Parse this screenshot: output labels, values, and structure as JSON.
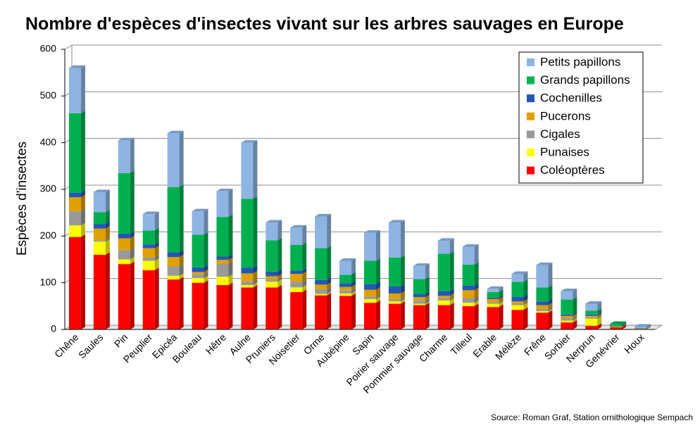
{
  "chart_data": {
    "type": "bar",
    "stacked": true,
    "title": "Nombre d'espèces d'insectes vivant sur les arbres sauvages en Europe",
    "ylabel": "Espèces d'insectes",
    "xlabel": "",
    "ylim": [
      0,
      600
    ],
    "yticks": [
      0,
      100,
      200,
      300,
      400,
      500,
      600
    ],
    "grid": true,
    "legend_position": "top-right",
    "source": "Source: Roman Graf, Station ornithologique Sempach",
    "categories": [
      "Chêne",
      "Saules",
      "Pin",
      "Peuplier",
      "Epicéa",
      "Bouleau",
      "Hêtre",
      "Aulne",
      "Pruniers",
      "Noisetier",
      "Orme",
      "Aubépine",
      "Sapin",
      "Poirier sauvage",
      "Pommier sauvage",
      "Charme",
      "Tilleul",
      "Erable",
      "Mélèze",
      "Frêne",
      "Sorbier",
      "Nerprun",
      "Genévrier",
      "Houx"
    ],
    "series": [
      {
        "name": "Coléoptères",
        "color": "#ff0000",
        "values": [
          198,
          160,
          140,
          127,
          107,
          100,
          95,
          90,
          90,
          80,
          73,
          72,
          57,
          55,
          52,
          52,
          50,
          48,
          42,
          36,
          15,
          8,
          5,
          1
        ]
      },
      {
        "name": "Punaises",
        "color": "#ffff00",
        "values": [
          25,
          28,
          10,
          20,
          8,
          10,
          18,
          5,
          12,
          10,
          3,
          5,
          8,
          5,
          3,
          10,
          7,
          7,
          10,
          3,
          4,
          15,
          1,
          1
        ]
      },
      {
        "name": "Cigales",
        "color": "#999999",
        "values": [
          30,
          3,
          20,
          7,
          20,
          8,
          28,
          8,
          5,
          12,
          10,
          7,
          5,
          5,
          7,
          5,
          10,
          3,
          3,
          5,
          5,
          3,
          0,
          0
        ]
      },
      {
        "name": "Pucerons",
        "color": "#e0a000",
        "values": [
          30,
          25,
          25,
          20,
          20,
          5,
          8,
          17,
          7,
          17,
          10,
          7,
          15,
          12,
          7,
          5,
          17,
          7,
          5,
          8,
          5,
          3,
          0,
          0
        ]
      },
      {
        "name": "Cochenilles",
        "color": "#2457b5",
        "values": [
          10,
          10,
          10,
          8,
          10,
          10,
          7,
          12,
          10,
          7,
          10,
          8,
          12,
          15,
          7,
          10,
          10,
          3,
          10,
          8,
          3,
          3,
          1,
          1
        ]
      },
      {
        "name": "Grands papillons",
        "color": "#00b050",
        "values": [
          170,
          25,
          130,
          30,
          140,
          70,
          85,
          148,
          67,
          55,
          68,
          18,
          50,
          62,
          32,
          80,
          45,
          12,
          32,
          30,
          32,
          8,
          5,
          0
        ]
      },
      {
        "name": "Petits papillons",
        "color": "#8eb4e3",
        "values": [
          97,
          43,
          70,
          35,
          115,
          50,
          55,
          120,
          38,
          37,
          68,
          30,
          60,
          75,
          28,
          28,
          38,
          7,
          17,
          48,
          18,
          15,
          0,
          3
        ]
      }
    ]
  }
}
